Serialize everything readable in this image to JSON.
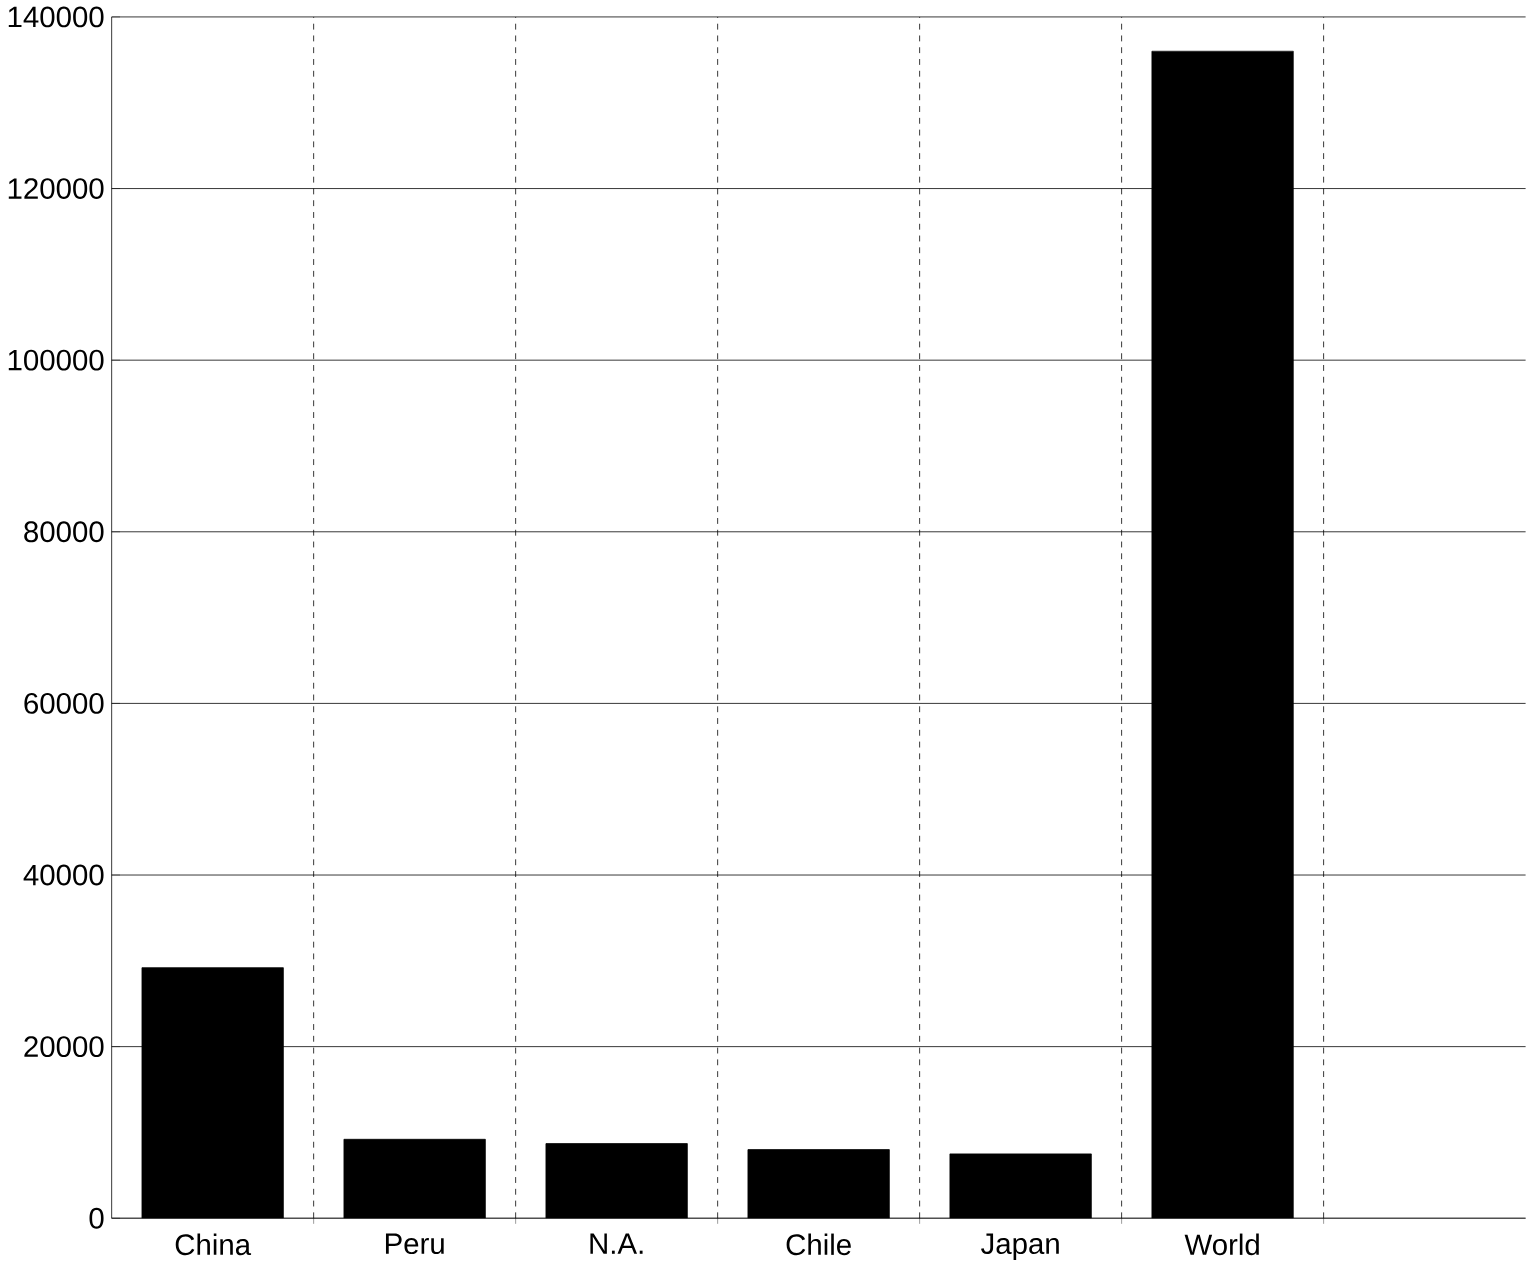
{
  "chart_data": {
    "type": "bar",
    "categories": [
      "China",
      "Peru",
      "N.A.",
      "Chile",
      "Japan",
      "World"
    ],
    "values": [
      29200,
      9200,
      8700,
      8000,
      7500,
      136000
    ],
    "color": "#000000",
    "ylim": [
      0,
      140000
    ],
    "yticks": [
      0,
      20000,
      40000,
      60000,
      80000,
      100000,
      120000,
      140000
    ],
    "grid": true
  }
}
